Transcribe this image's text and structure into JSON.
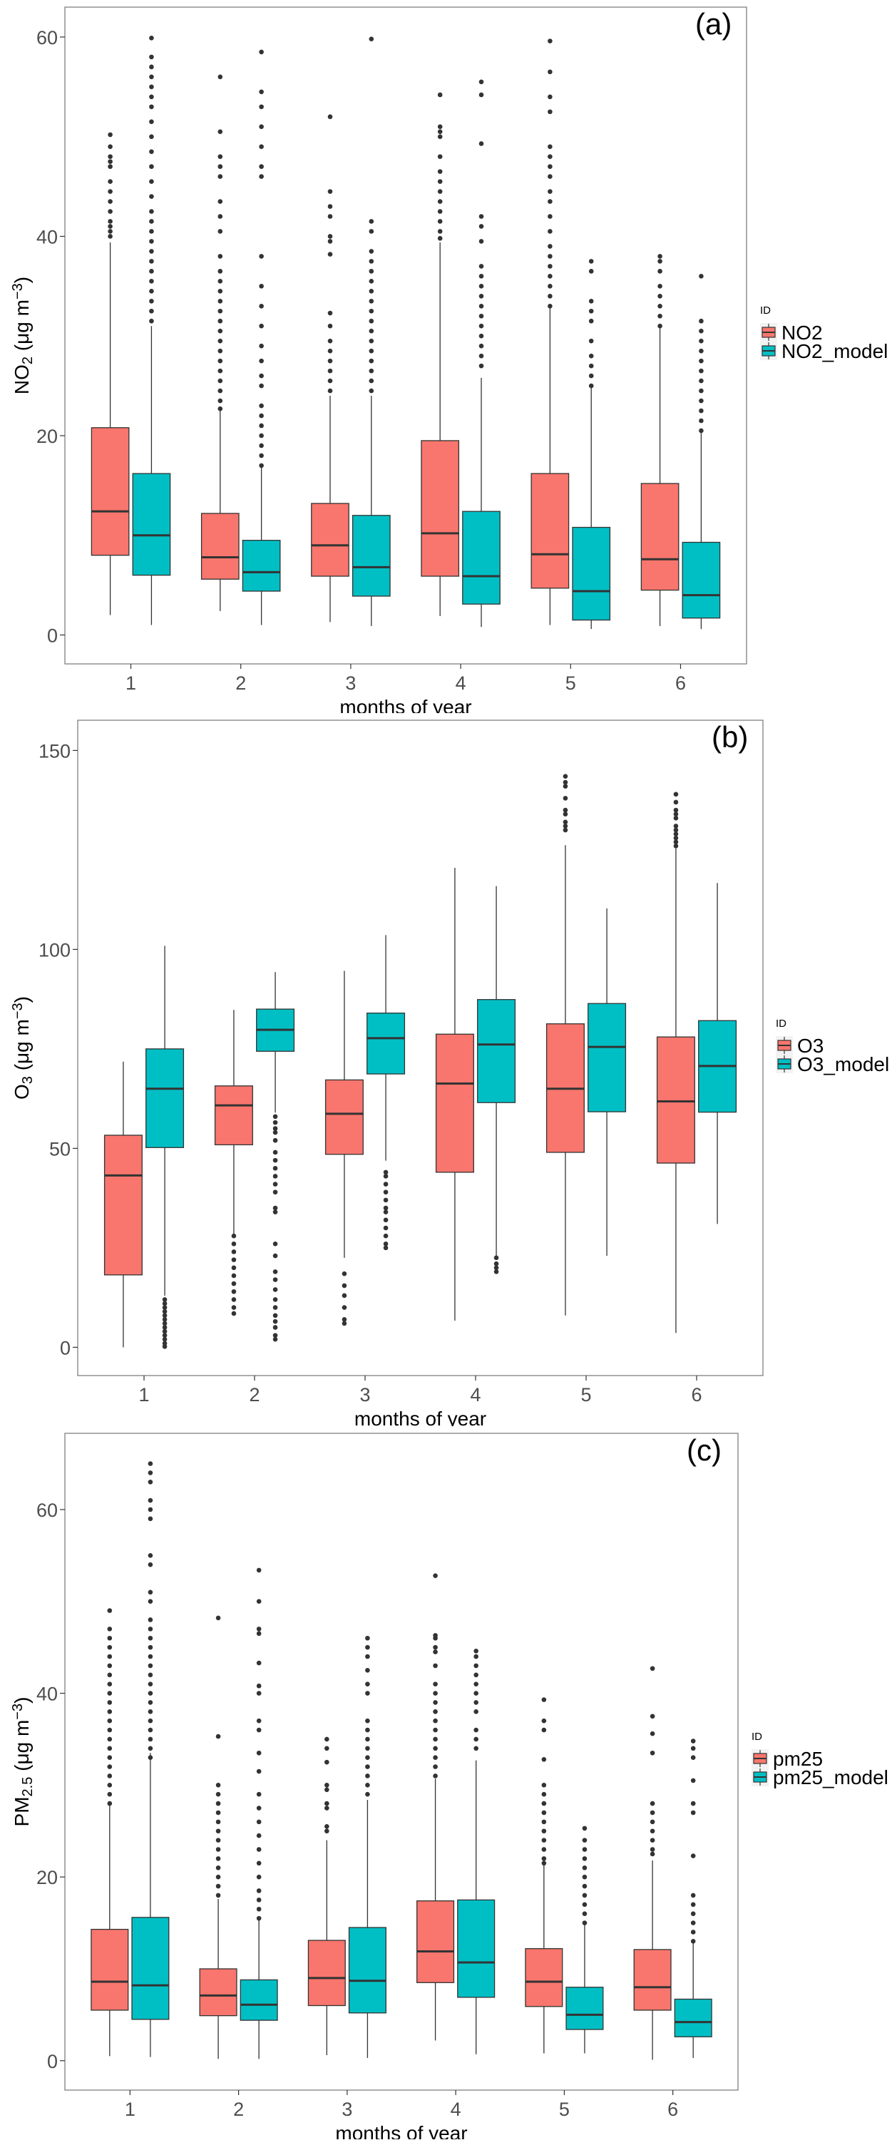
{
  "chart_data": [
    {
      "type": "box",
      "panel_label": "(a)",
      "xlabel": "months of year",
      "ylabel": {
        "main": "NO",
        "sub": "2",
        "unit": " (μg m",
        "sup": "−3",
        "close": ")"
      },
      "categories": [
        "1",
        "2",
        "3",
        "4",
        "5",
        "6"
      ],
      "yticks": [
        0,
        20,
        40,
        60
      ],
      "ylim": [
        -2.9,
        63
      ],
      "grid": false,
      "legend": {
        "title": "ID",
        "position": "right",
        "entries": [
          "NO2",
          "NO2_model"
        ]
      },
      "colors": [
        "#F8766D",
        "#00BFC4"
      ],
      "series": [
        {
          "name": "NO2",
          "stats": [
            [
              2,
              8,
              12.4,
              20.8,
              39.4
            ],
            [
              2.4,
              5.6,
              7.8,
              12.2,
              22.5
            ],
            [
              1.3,
              5.9,
              9,
              13.2,
              24
            ],
            [
              1.9,
              5.9,
              10.2,
              19.5,
              39.4
            ],
            [
              1,
              4.7,
              8.1,
              16.2,
              32.9
            ],
            [
              0.9,
              4.5,
              7.6,
              15.2,
              30.9
            ]
          ],
          "outliers": [
            [
              40,
              40.5,
              41,
              41.5,
              42.5,
              43.5,
              44.5,
              45.5,
              47,
              47.5,
              48,
              49,
              50.2
            ],
            [
              22.7,
              23.5,
              24.5,
              25.5,
              26.5,
              27.5,
              28.5,
              29.5,
              30.5,
              31.5,
              32.5,
              33.5,
              34.5,
              35.5,
              36.5,
              38,
              40.5,
              42,
              43.5,
              46,
              47,
              48,
              50.5,
              56
            ],
            [
              24.5,
              25.5,
              26.5,
              27.5,
              28.5,
              29.5,
              31,
              32.3,
              38.2,
              39.5,
              40,
              42,
              43,
              44.5,
              52
            ],
            [
              39.8,
              40.5,
              41.5,
              42.5,
              43.5,
              44.5,
              45.5,
              46.5,
              48,
              50,
              50.5,
              51,
              54.2
            ],
            [
              33,
              34,
              35,
              36,
              37,
              38,
              39,
              40.5,
              42,
              43.5,
              44.5,
              46,
              47,
              48,
              49,
              52.5,
              54,
              56.5,
              59.6
            ],
            [
              31,
              32,
              33,
              34,
              35,
              36.5,
              37.5,
              38
            ]
          ]
        },
        {
          "name": "NO2_model",
          "stats": [
            [
              1,
              6,
              10,
              16.2,
              31
            ],
            [
              1,
              4.4,
              6.3,
              9.5,
              17
            ],
            [
              0.9,
              3.9,
              6.8,
              12,
              24
            ],
            [
              0.8,
              3.1,
              5.9,
              12.4,
              25.8
            ],
            [
              0.6,
              1.5,
              4.4,
              10.8,
              24.8
            ],
            [
              0.6,
              1.7,
              4,
              9.3,
              20.5
            ]
          ],
          "outliers": [
            [
              31.5,
              32.5,
              33.5,
              34.5,
              35.5,
              36.5,
              37.5,
              38.5,
              39.5,
              40.5,
              41.5,
              42.5,
              44,
              45.5,
              47,
              48.5,
              50,
              51.5,
              53,
              54,
              55,
              56,
              57,
              58,
              59.9
            ],
            [
              17,
              18,
              19,
              20,
              21,
              22,
              23,
              25,
              26,
              27.5,
              29,
              31,
              33,
              35,
              38,
              46,
              47,
              49,
              51,
              53,
              54.5,
              58.5
            ],
            [
              24.5,
              25.5,
              26.5,
              27.5,
              28.5,
              29.5,
              30.5,
              31.5,
              32.5,
              33.5,
              34.5,
              35.5,
              36.5,
              37.5,
              38.5,
              40.5,
              41.5,
              59.8
            ],
            [
              27,
              28,
              29,
              30,
              31,
              32,
              33,
              34,
              35,
              36,
              37,
              39.5,
              41,
              42,
              49.3,
              54.2,
              55.5
            ],
            [
              25,
              26,
              27,
              28,
              29.5,
              31.5,
              32.5,
              33.5,
              36.5,
              37.5
            ],
            [
              20.5,
              21.5,
              22.5,
              23.5,
              24.5,
              25.5,
              26.5,
              27.5,
              28.5,
              29.5,
              30.5,
              31.5,
              36
            ]
          ]
        }
      ]
    },
    {
      "type": "box",
      "panel_label": "(b)",
      "xlabel": "months of year",
      "ylabel": {
        "main": "O",
        "sub": "3",
        "unit": " (μg m",
        "sup": "−3",
        "close": ")"
      },
      "categories": [
        "1",
        "2",
        "3",
        "4",
        "5",
        "6"
      ],
      "yticks": [
        0,
        50,
        100,
        150
      ],
      "ylim": [
        -7.1,
        157.6
      ],
      "grid": false,
      "legend": {
        "title": "ID",
        "position": "right",
        "entries": [
          "O3",
          "O3_model"
        ]
      },
      "colors": [
        "#F8766D",
        "#00BFC4"
      ],
      "series": [
        {
          "name": "O3",
          "stats": [
            [
              0,
              18.2,
              43.2,
              53.3,
              71.8
            ],
            [
              28.5,
              50.9,
              60.8,
              65.7,
              84.8
            ],
            [
              22.5,
              48.5,
              58.7,
              67.2,
              94.6
            ],
            [
              6.7,
              44,
              66.3,
              78.7,
              120.5
            ],
            [
              8,
              49,
              65,
              81.3,
              126.2
            ],
            [
              3.6,
              46.3,
              61.8,
              78,
              125.4
            ]
          ],
          "outliers": [
            [],
            [
              8.5,
              10,
              12,
              14,
              16,
              18,
              20,
              22,
              24,
              26,
              28
            ],
            [
              6,
              7,
              10,
              13,
              15.5,
              18.5
            ],
            [],
            [
              130,
              131,
              132,
              134,
              135,
              138,
              141,
              142,
              143.5
            ],
            [
              126,
              127,
              128,
              129,
              130,
              131,
              133,
              134,
              135,
              137,
              139
            ]
          ]
        },
        {
          "name": "O3_model",
          "stats": [
            [
              13,
              50.2,
              65,
              75,
              100.9
            ],
            [
              59,
              74.4,
              79.8,
              85,
              94.3
            ],
            [
              46.9,
              68.7,
              77.7,
              84,
              103.6
            ],
            [
              22.8,
              61.5,
              76.1,
              87.4,
              115.9
            ],
            [
              23,
              59.2,
              75.5,
              86.4,
              110.3
            ],
            [
              31,
              59.1,
              70.7,
              82.1,
              116.7
            ]
          ],
          "outliers": [
            [
              0.2,
              1,
              2,
              3,
              4,
              5,
              6,
              7,
              8,
              9,
              10,
              11,
              12
            ],
            [
              2,
              3,
              5,
              6.5,
              8,
              10,
              12,
              14.5,
              17,
              19,
              23,
              26,
              34,
              35,
              39,
              41,
              43,
              45,
              47,
              49,
              52,
              54,
              55,
              56.5,
              58
            ],
            [
              25,
              26,
              28,
              30,
              32,
              34,
              35,
              37,
              39,
              41,
              43,
              44
            ],
            [
              19,
              20,
              21,
              22.5
            ],
            [],
            []
          ]
        }
      ]
    },
    {
      "type": "box",
      "panel_label": "(c)",
      "xlabel": "months of year",
      "ylabel": {
        "main": "PM",
        "sub": "2.5",
        "unit": " (μg m",
        "sup": "−3",
        "close": ")"
      },
      "categories": [
        "1",
        "2",
        "3",
        "4",
        "5",
        "6"
      ],
      "yticks": [
        0,
        20,
        40,
        60
      ],
      "ylim": [
        -3.2,
        68.3
      ],
      "grid": false,
      "legend": {
        "title": "ID",
        "position": "right",
        "entries": [
          "pm25",
          "pm25_model"
        ]
      },
      "colors": [
        "#F8766D",
        "#00BFC4"
      ],
      "series": [
        {
          "name": "pm25",
          "stats": [
            [
              0.5,
              5.5,
              8.6,
              14.3,
              27.9
            ],
            [
              0.2,
              4.9,
              7.1,
              10,
              17.6
            ],
            [
              0.6,
              6,
              9,
              13.1,
              24
            ],
            [
              2.2,
              8.5,
              11.9,
              17.4,
              30.7
            ],
            [
              0.8,
              5.9,
              8.6,
              12.2,
              21.4
            ],
            [
              0.1,
              5.5,
              8,
              12.1,
              21.8
            ]
          ],
          "outliers": [
            [
              28,
              29,
              30,
              31,
              32,
              33,
              34,
              35,
              36,
              37,
              38,
              39,
              40,
              41,
              42,
              43,
              44,
              45,
              46,
              47,
              49
            ],
            [
              18,
              19,
              20,
              21,
              22,
              23,
              24,
              25,
              26,
              27,
              28,
              29,
              30,
              35.3,
              48.2
            ],
            [
              25,
              25.5,
              27.5,
              28,
              29.5,
              30,
              32.5,
              34,
              35
            ],
            [
              31,
              32,
              33,
              34,
              35,
              36,
              37,
              38,
              39,
              40,
              41,
              43,
              44.5,
              45,
              46,
              46.3,
              52.8
            ],
            [
              21.5,
              22,
              23,
              24,
              25,
              26,
              27,
              28,
              29,
              30,
              32.8,
              36,
              37,
              39.3
            ],
            [
              22.5,
              23,
              24,
              25,
              26,
              27,
              28,
              33.5,
              35.6,
              37.5,
              42.7
            ]
          ]
        },
        {
          "name": "pm25_model",
          "stats": [
            [
              0.4,
              4.5,
              8.2,
              15.6,
              33.5
            ],
            [
              0.2,
              4.4,
              6.1,
              8.8,
              15.4
            ],
            [
              0.3,
              5.2,
              8.7,
              14.5,
              28.4
            ],
            [
              0.7,
              6.9,
              10.7,
              17.5,
              32.7
            ],
            [
              0.8,
              3.4,
              5,
              8,
              14.9
            ],
            [
              0.3,
              2.6,
              4.2,
              6.7,
              12.8
            ]
          ],
          "outliers": [
            [
              33,
              34,
              35,
              36,
              37,
              38,
              39,
              40,
              41,
              42,
              43,
              44,
              45,
              46,
              47,
              48,
              50,
              51,
              54,
              55,
              59,
              60,
              61,
              63,
              64,
              65
            ],
            [
              15.5,
              16.5,
              17.5,
              18.5,
              20,
              21.5,
              23,
              24.5,
              26,
              27.5,
              29,
              31.5,
              33.5,
              36,
              37,
              40,
              40.8,
              43.3,
              46.5,
              47,
              50,
              53.4
            ],
            [
              29,
              30,
              31,
              32,
              33,
              34,
              35,
              36,
              37,
              40,
              41,
              42.5,
              44,
              45,
              46
            ],
            [
              34,
              35,
              36,
              38,
              39,
              40,
              41,
              42,
              43,
              44,
              44.6
            ],
            [
              15,
              16,
              17,
              18,
              19,
              20,
              21,
              22,
              23,
              24,
              25.3
            ],
            [
              13,
              14,
              15,
              16,
              17,
              18,
              22.3,
              27,
              28,
              30.5,
              33,
              34,
              34.8
            ]
          ]
        }
      ]
    }
  ]
}
